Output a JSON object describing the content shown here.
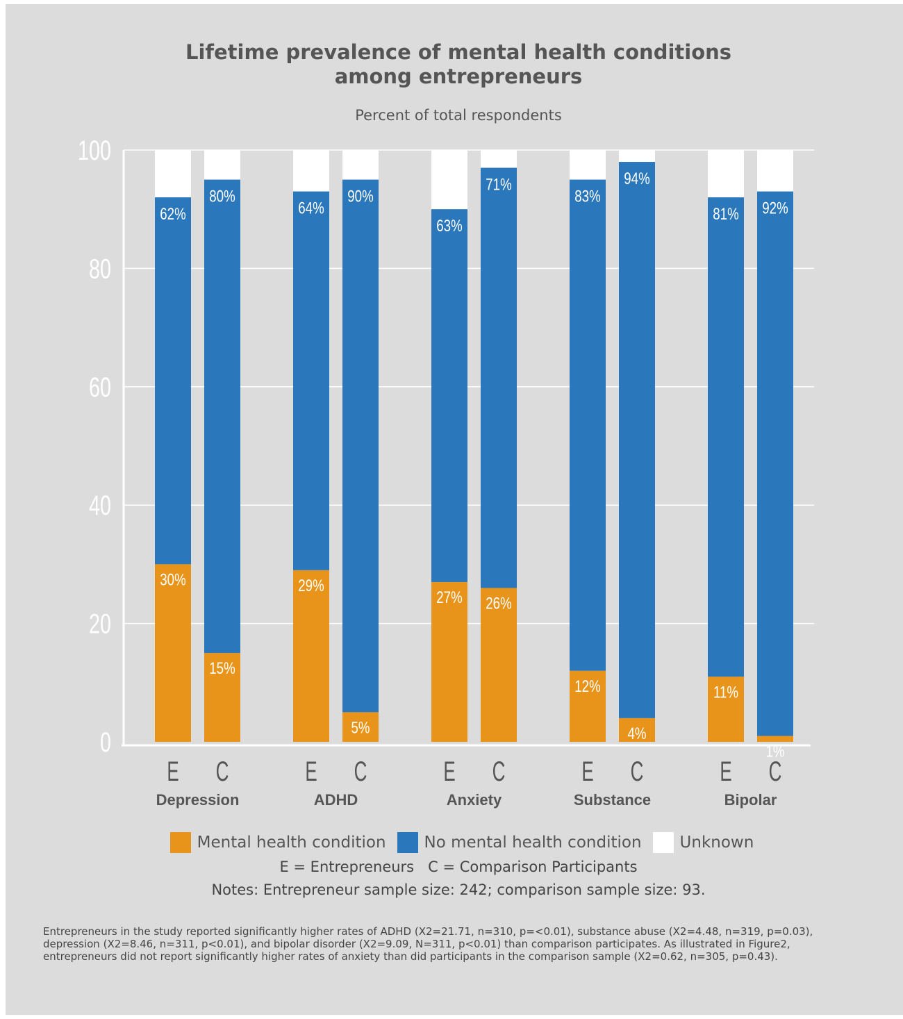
{
  "title_lines": [
    "Lifetime prevalence of mental health conditions",
    "among entrepreneurs"
  ],
  "subtitle": "Percent of total respondents",
  "legend": [
    {
      "label": "Mental health condition",
      "color": "#e8941a"
    },
    {
      "label": "No mental health condition",
      "color": "#2a77bb"
    },
    {
      "label": "Unknown",
      "color": "#ffffff"
    }
  ],
  "abbreviations": "E = Entrepreneurs   C = Comparison Participants",
  "notes": "Notes: Entrepreneur sample size: 242; comparison sample size: 93.",
  "footnote_lines": [
    "Entrepreneurs in the study reported significantly higher rates of ADHD (X2=21.71, n=310, p=<0.01), substance abuse (X2=4.48, n=319, p=0.03),",
    "depression (X2=8.46, n=311, p<0.01), and bipolar disorder (X2=9.09, N=311, p<0.01) than comparison participates.  As illustrated in Figure2,",
    "entrepreneurs did not report significantly higher rates of anxiety than did participants in the comparison sample (X2=0.62, n=305, p=0.43)."
  ],
  "chart_data": {
    "type": "bar",
    "stacked": true,
    "ylim": [
      0,
      100
    ],
    "yticks": [
      0,
      20,
      40,
      60,
      80,
      100
    ],
    "grid": true,
    "groups": [
      {
        "name": "Depression",
        "bars": [
          {
            "label": "E",
            "condition": 30,
            "no_condition": 62,
            "condition_label": "30%",
            "no_condition_label": "62%"
          },
          {
            "label": "C",
            "condition": 15,
            "no_condition": 80,
            "condition_label": "15%",
            "no_condition_label": "80%"
          }
        ]
      },
      {
        "name": "ADHD",
        "bars": [
          {
            "label": "E",
            "condition": 29,
            "no_condition": 64,
            "condition_label": "29%",
            "no_condition_label": "64%"
          },
          {
            "label": "C",
            "condition": 5,
            "no_condition": 90,
            "condition_label": "5%",
            "no_condition_label": "90%"
          }
        ]
      },
      {
        "name": "Anxiety",
        "bars": [
          {
            "label": "E",
            "condition": 27,
            "no_condition": 63,
            "condition_label": "27%",
            "no_condition_label": "63%"
          },
          {
            "label": "C",
            "condition": 26,
            "no_condition": 71,
            "condition_label": "26%",
            "no_condition_label": "71%"
          }
        ]
      },
      {
        "name": "Substance",
        "bars": [
          {
            "label": "E",
            "condition": 12,
            "no_condition": 83,
            "condition_label": "12%",
            "no_condition_label": "83%"
          },
          {
            "label": "C",
            "condition": 4,
            "no_condition": 94,
            "condition_label": "4%",
            "no_condition_label": "94%"
          }
        ]
      },
      {
        "name": "Bipolar",
        "bars": [
          {
            "label": "E",
            "condition": 11,
            "no_condition": 81,
            "condition_label": "11%",
            "no_condition_label": "81%"
          },
          {
            "label": "C",
            "condition": 1,
            "no_condition": 92,
            "condition_label": "1%",
            "no_condition_label": "92%"
          }
        ]
      }
    ]
  }
}
